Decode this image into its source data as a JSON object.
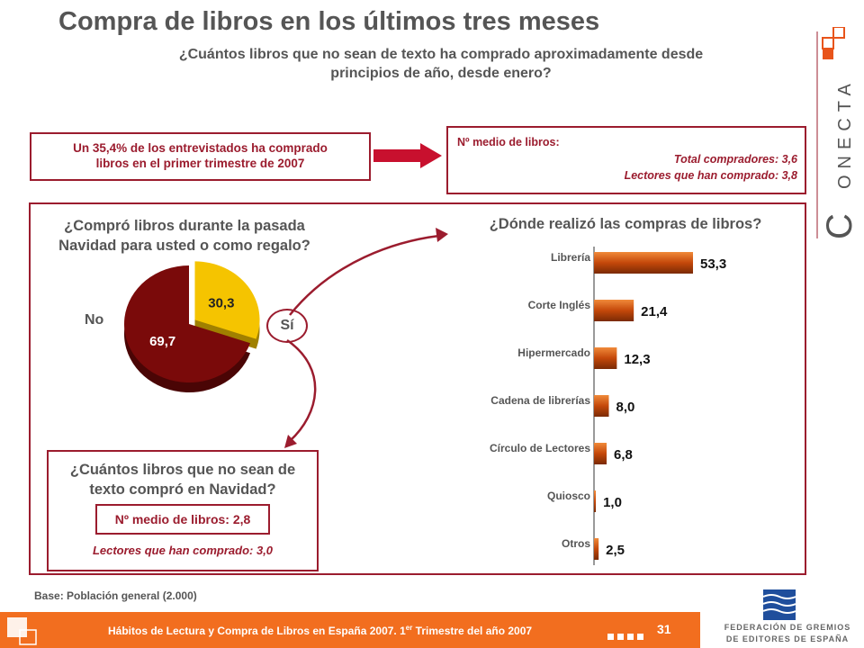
{
  "header": {
    "title": "Compra de libros en los últimos tres meses",
    "subtitle_line1": "¿Cuántos libros que no sean de texto ha comprado aproximadamente desde",
    "subtitle_line2": "principios de año, desde enero?"
  },
  "brand": {
    "name": "ONECTA",
    "initial": "C",
    "accent": "#e8541a"
  },
  "summary_left": {
    "line1": "Un 35,4% de los entrevistados ha comprado",
    "line2": "libros en el primer trimestre de 2007"
  },
  "summary_right": {
    "title": "Nº medio de libros:",
    "total": "Total compradores: 3,6",
    "readers": "Lectores que han comprado: 3,8"
  },
  "left_question": {
    "line1": "¿Compró libros durante la pasada",
    "line2": "Navidad para usted o como regalo?"
  },
  "right_question": {
    "text": "¿Dónde realizó las compras de libros?"
  },
  "pie_labels": {
    "no": "No",
    "si": "Sí"
  },
  "bottom_box": {
    "q_line1": "¿Cuántos libros que no sean de",
    "q_line2": "texto compró en Navidad?",
    "avg": "Nº medio de libros: 2,8",
    "readers": "Lectores que han comprado: 3,0"
  },
  "base_note": "Base: Población general (2.000)",
  "footer": {
    "text": "Hábitos de Lectura y Compra de Libros en España 2007. 1er Trimestre del año 2007",
    "page": "31"
  },
  "federation": {
    "line1": "FEDERACIÓN DE GREMIOS",
    "line2": "DE EDITORES DE ESPAÑA"
  },
  "colors": {
    "dark_red": "#7a0a0a",
    "yellow": "#f5c400",
    "brand_red": "#9b1c2e",
    "orange": "#f26e1f",
    "bar": "#d9560f"
  },
  "chart_data": [
    {
      "type": "pie",
      "categories": [
        "Sí",
        "No"
      ],
      "values": [
        30.3,
        69.7
      ],
      "labels": [
        "30,3",
        "69,7"
      ]
    },
    {
      "type": "bar",
      "orientation": "horizontal",
      "categories": [
        "Librería",
        "Corte Inglés",
        "Hipermercado",
        "Cadena de librerías",
        "Círculo de Lectores",
        "Quiosco",
        "Otros"
      ],
      "values": [
        53.3,
        21.4,
        12.3,
        8.0,
        6.8,
        1.0,
        2.5
      ],
      "labels": [
        "53,3",
        "21,4",
        "12,3",
        "8,0",
        "6,8",
        "1,0",
        "2,5"
      ]
    }
  ]
}
